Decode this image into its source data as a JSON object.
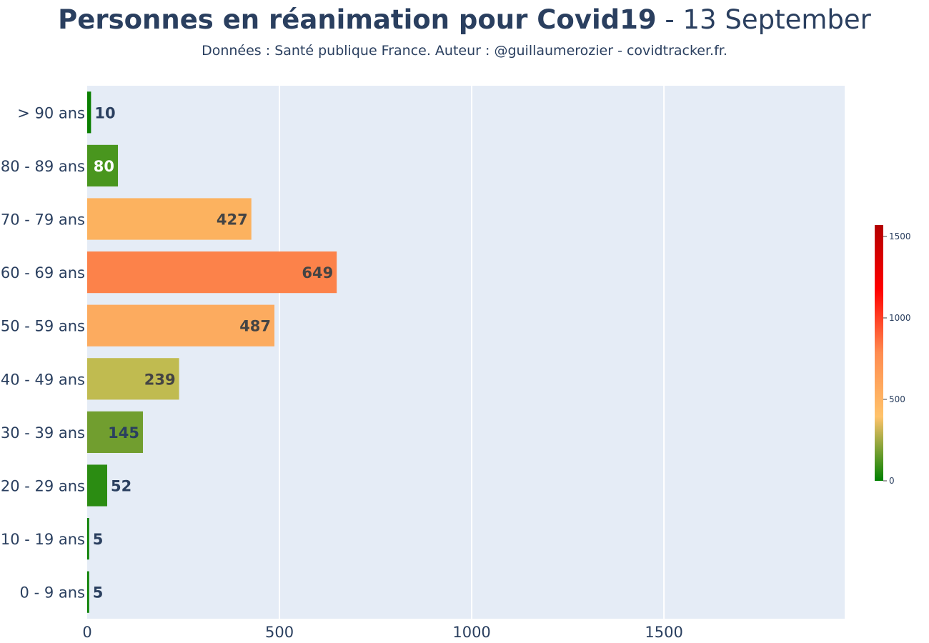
{
  "title": {
    "main": "Personnes en réanimation pour Covid19",
    "date": " - 13 September"
  },
  "subtitle": "Données : Santé publique France. Auteur : @guillaumerozier - covidtracker.fr.",
  "chart_data": {
    "type": "bar",
    "orientation": "horizontal",
    "categories": [
      "0 - 9 ans",
      "10 - 19 ans",
      "20 - 29 ans",
      "30 - 39 ans",
      "40 - 49 ans",
      "50 - 59 ans",
      "60 - 69 ans",
      "70 - 79 ans",
      "80 - 89 ans",
      "> 90 ans"
    ],
    "values": [
      5,
      5,
      52,
      145,
      239,
      487,
      649,
      427,
      80,
      10
    ],
    "bar_colors": [
      "#087f00",
      "#087f00",
      "#2b8c12",
      "#719e2f",
      "#c0bb50",
      "#fcab5f",
      "#fc824a",
      "#fcb25f",
      "#49961e",
      "#0a7f01"
    ],
    "label_colors": [
      "#2a3f5f",
      "#2a3f5f",
      "#2a3f5f",
      "#2a3f5f",
      "#444444",
      "#444444",
      "#444444",
      "#444444",
      "#ffffff",
      "#2a3f5f"
    ],
    "xlim": [
      0,
      1970
    ],
    "xticks": [
      0,
      500,
      1000,
      1500
    ],
    "grid": true,
    "plot_background": "#e5ecf6",
    "colorbar": {
      "range": [
        0,
        1570
      ],
      "ticks": [
        0,
        500,
        1000,
        1500
      ],
      "colorscale": [
        "#008000",
        "#ffc36b",
        "#ff8c50",
        "#ff0000",
        "#b30000"
      ]
    }
  }
}
